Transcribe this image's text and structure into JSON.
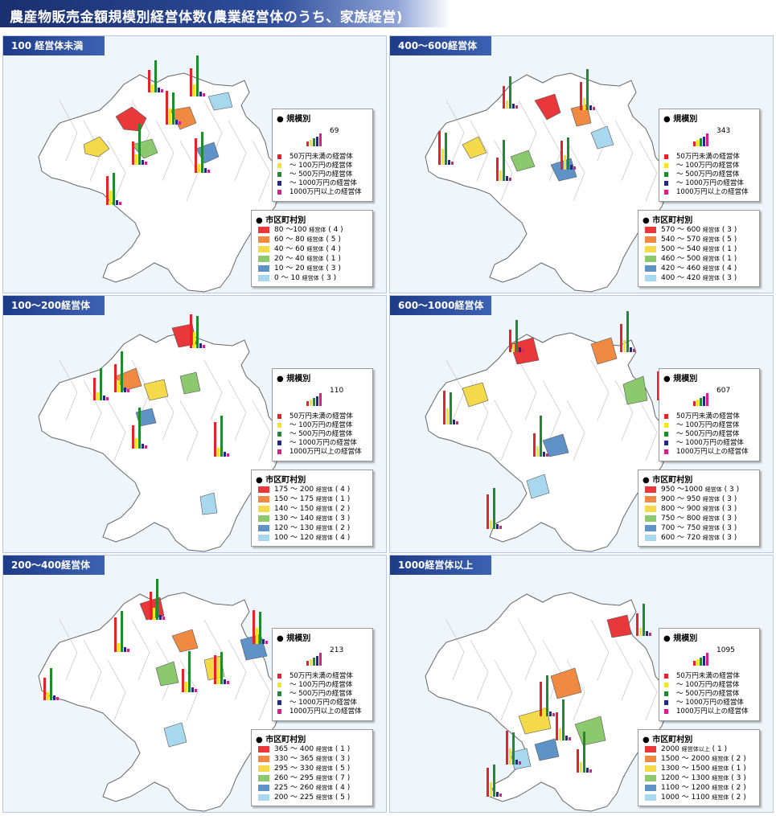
{
  "title": "農産物販売金額規模別経営体数(農業経営体のうち、家族経営)",
  "scale_legend": {
    "heading": "規模別",
    "items": [
      {
        "label": "50万円未満の経営体",
        "color": "#e8202a"
      },
      {
        "label": "～ 100万円の経営体",
        "color": "#f4e61c"
      },
      {
        "label": "～ 500万円の経営体",
        "color": "#1f8b2e"
      },
      {
        "label": "～ 1000万円の経営体",
        "color": "#24278a"
      },
      {
        "label": "1000万円以上の経営体",
        "color": "#d81e8a"
      }
    ]
  },
  "muni_heading": "市区町村別",
  "choropleth_colors": [
    "#e8383a",
    "#f08a42",
    "#f4d94a",
    "#8cc86e",
    "#5f93c8",
    "#a8d8ee"
  ],
  "panels": [
    {
      "title": "100 経営体未満",
      "scale_value": "69",
      "legend": [
        {
          "range": "80 ～100",
          "unit": "経営体",
          "count": "4"
        },
        {
          "range": "60 ～ 80",
          "unit": "経営体",
          "count": "5"
        },
        {
          "range": "40 ～ 60",
          "unit": "経営体",
          "count": "4"
        },
        {
          "range": "20 ～ 40",
          "unit": "経営体",
          "count": "1"
        },
        {
          "range": "10 ～ 20",
          "unit": "経営体",
          "count": "3"
        },
        {
          "range": "0 ～ 10",
          "unit": "経営体",
          "count": "3"
        }
      ]
    },
    {
      "title": "400～600経営体",
      "scale_value": "343",
      "legend": [
        {
          "range": "570 ～ 600",
          "unit": "経営体",
          "count": "3"
        },
        {
          "range": "540 ～ 570",
          "unit": "経営体",
          "count": "5"
        },
        {
          "range": "500 ～ 540",
          "unit": "経営体",
          "count": "1"
        },
        {
          "range": "460 ～ 500",
          "unit": "経営体",
          "count": "1"
        },
        {
          "range": "420 ～ 460",
          "unit": "経営体",
          "count": "4"
        },
        {
          "range": "400 ～ 420",
          "unit": "経営体",
          "count": "3"
        }
      ]
    },
    {
      "title": "100～200経営体",
      "scale_value": "110",
      "legend": [
        {
          "range": "175 ～ 200",
          "unit": "経営体",
          "count": "4"
        },
        {
          "range": "150 ～ 175",
          "unit": "経営体",
          "count": "1"
        },
        {
          "range": "140 ～ 150",
          "unit": "経営体",
          "count": "2"
        },
        {
          "range": "130 ～ 140",
          "unit": "経営体",
          "count": "3"
        },
        {
          "range": "120 ～ 130",
          "unit": "経営体",
          "count": "2"
        },
        {
          "range": "100 ～ 120",
          "unit": "経営体",
          "count": "4"
        }
      ]
    },
    {
      "title": "600～1000経営体",
      "scale_value": "607",
      "legend": [
        {
          "range": "950 ～1000",
          "unit": "経営体",
          "count": "3"
        },
        {
          "range": "900 ～ 950",
          "unit": "経営体",
          "count": "3"
        },
        {
          "range": "800 ～ 900",
          "unit": "経営体",
          "count": "3"
        },
        {
          "range": "750 ～ 800",
          "unit": "経営体",
          "count": "3"
        },
        {
          "range": "700 ～ 750",
          "unit": "経営体",
          "count": "3"
        },
        {
          "range": "600 ～ 720",
          "unit": "経営体",
          "count": "3"
        }
      ]
    },
    {
      "title": "200～400経営体",
      "scale_value": "213",
      "legend": [
        {
          "range": "365 ～ 400",
          "unit": "経営体",
          "count": "1"
        },
        {
          "range": "330 ～ 365",
          "unit": "経営体",
          "count": "3"
        },
        {
          "range": "295 ～ 330",
          "unit": "経営体",
          "count": "5"
        },
        {
          "range": "260 ～ 295",
          "unit": "経営体",
          "count": "7"
        },
        {
          "range": "225 ～ 260",
          "unit": "経営体",
          "count": "4"
        },
        {
          "range": "200 ～ 225",
          "unit": "経営体",
          "count": "5"
        }
      ]
    },
    {
      "title": "1000経営体以上",
      "scale_value": "1095",
      "legend": [
        {
          "range": "2000",
          "unit": "経営体以上",
          "count": "1"
        },
        {
          "range": "1500 ～ 2000",
          "unit": "経営体",
          "count": "2"
        },
        {
          "range": "1300 ～ 1500",
          "unit": "経営体",
          "count": "1"
        },
        {
          "range": "1200 ～ 1300",
          "unit": "経営体",
          "count": "3"
        },
        {
          "range": "1100 ～ 1200",
          "unit": "経営体",
          "count": "2"
        },
        {
          "range": "1000 ～ 1100",
          "unit": "経営体",
          "count": "2"
        }
      ]
    }
  ]
}
